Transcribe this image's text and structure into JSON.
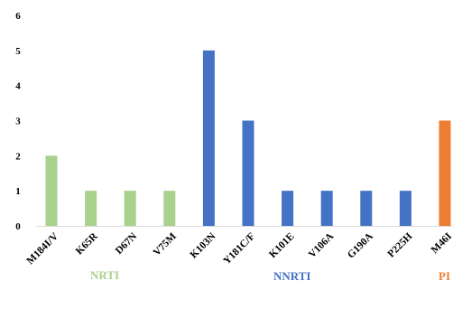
{
  "chart_data": {
    "type": "bar",
    "categories": [
      "M184I/V",
      "K65R",
      "D67N",
      "V75M",
      "K103N",
      "Y181C/F",
      "K101E",
      "V106A",
      "G190A",
      "P225H",
      "M46I"
    ],
    "values": [
      2,
      1,
      1,
      1,
      5,
      3,
      1,
      1,
      1,
      1,
      3
    ],
    "groups": [
      {
        "label": "NRTI",
        "color": "#a9d18e",
        "indices": [
          0,
          1,
          2,
          3
        ]
      },
      {
        "label": "NNRTI",
        "color": "#4472c4",
        "indices": [
          4,
          5,
          6,
          7,
          8,
          9
        ]
      },
      {
        "label": "PI",
        "color": "#ed7d31",
        "indices": [
          10
        ]
      }
    ],
    "ylim": [
      0,
      6
    ],
    "yticks": [
      "0",
      "1",
      "2",
      "3",
      "4",
      "5",
      "6"
    ],
    "title": "",
    "xlabel": "",
    "ylabel": "",
    "grid": false,
    "legend": "none"
  }
}
